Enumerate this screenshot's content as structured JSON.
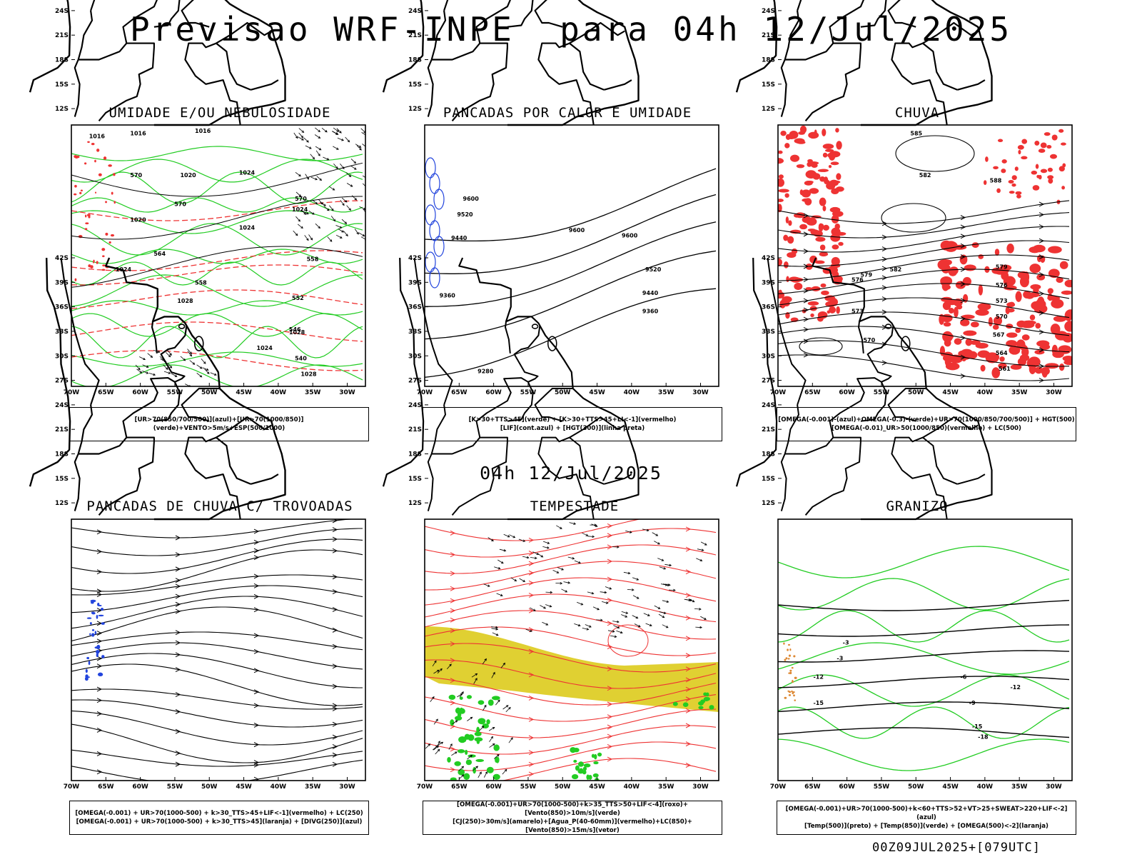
{
  "header": {
    "main_title": "Previsao WRF-INPE  para 04h 12/Jul/2025",
    "mid_title": "04h 12/Jul/2025",
    "footer": "00Z09JUL2025+[079UTC]"
  },
  "axes": {
    "lat_labels": [
      "12S",
      "15S",
      "18S",
      "21S",
      "24S",
      "27S",
      "30S",
      "33S",
      "36S",
      "39S",
      "42S"
    ],
    "lon_labels": [
      "70W",
      "65W",
      "60W",
      "55W",
      "50W",
      "45W",
      "40W",
      "35W",
      "30W"
    ]
  },
  "colors": {
    "green": "#22cc22",
    "red": "#ee3333",
    "blue": "#2244dd",
    "yellow": "#e0d032",
    "orange": "#dd8833"
  },
  "panels": [
    {
      "title": "UMIDADE E/OU NEBULOSIDADE",
      "legend": [
        "[UR>70(850/700/500)](azul)+[UR>70(1000/850)](verde)+VENTO>5m/s+ESP(500/1000)"
      ],
      "contour_labels": [
        "1016",
        "1016",
        "1016",
        "1020",
        "1020",
        "1024",
        "1024",
        "1024",
        "1024",
        "1024",
        "1028",
        "1028",
        "1028",
        "570",
        "570",
        "570",
        "564",
        "558",
        "558",
        "552",
        "546",
        "540"
      ]
    },
    {
      "title": "PANCADAS POR CALOR E UMIDADE",
      "legend": [
        "[K>30+TTS>45](verde) + [K>30+TTS>45+LI<-1](vermelho)",
        "[LIF](cont.azul) + [HGT(300)](linha preta)"
      ],
      "contour_labels": [
        "9600",
        "9520",
        "9440",
        "9360",
        "9600",
        "9520",
        "9440",
        "9360",
        "9280",
        "9600"
      ]
    },
    {
      "title": "CHUVA",
      "legend": [
        "[OMEGA(-0.001)-(azul)+OMEGA(-0.3)-(verde)+UR>70(1000/850/700/500)] + HGT(500)",
        "[OMEGA(-0.01)_UR>50(1000/850)(vermelho) + LC(500)"
      ],
      "contour_labels": [
        "585",
        "582",
        "588",
        "582",
        "579",
        "576",
        "573",
        "570",
        "567",
        "564",
        "561",
        "579",
        "576",
        "573",
        "570"
      ]
    },
    {
      "title": "PANCADAS DE CHUVA C/ TROVOADAS",
      "legend": [
        "[OMEGA(-0.001) + UR>70(1000-500) + k>30_TTS>45+LIF<-1](vermelho) + LC(250)",
        "[OMEGA(-0.001) + UR>70(1000-500) + k>30_TTS>45](laranja) + [DIVG(250)](azul)"
      ],
      "contour_labels": []
    },
    {
      "title": "TEMPESTADE",
      "legend": [
        "[OMEGA(-0.001)+UR>70(1000-500)+k>35_TTS>50+LIF<-4](roxo)+[Vento(850)>10m/s](verde)",
        "[CJ(250)>30m/s](amarelo)+[Agua_P(40-60mm)](vermelho)+LC(850)+[Vento(850)>15m/s](vetor)"
      ],
      "contour_labels": []
    },
    {
      "title": "GRANIZO",
      "legend": [
        "[OMEGA(-0.001)+UR>70(1000-500)+k<60+TTS>52+VT>25+SWEAT>220+LIF<-2](azul)",
        "[Temp(500)](preto) + [Temp(850)](verde) + [OMEGA(500)<-2](laranja)"
      ],
      "contour_labels": [
        "-3",
        "-3",
        "-6",
        "-9",
        "-12",
        "-15",
        "-18",
        "-15",
        "-12"
      ]
    }
  ]
}
